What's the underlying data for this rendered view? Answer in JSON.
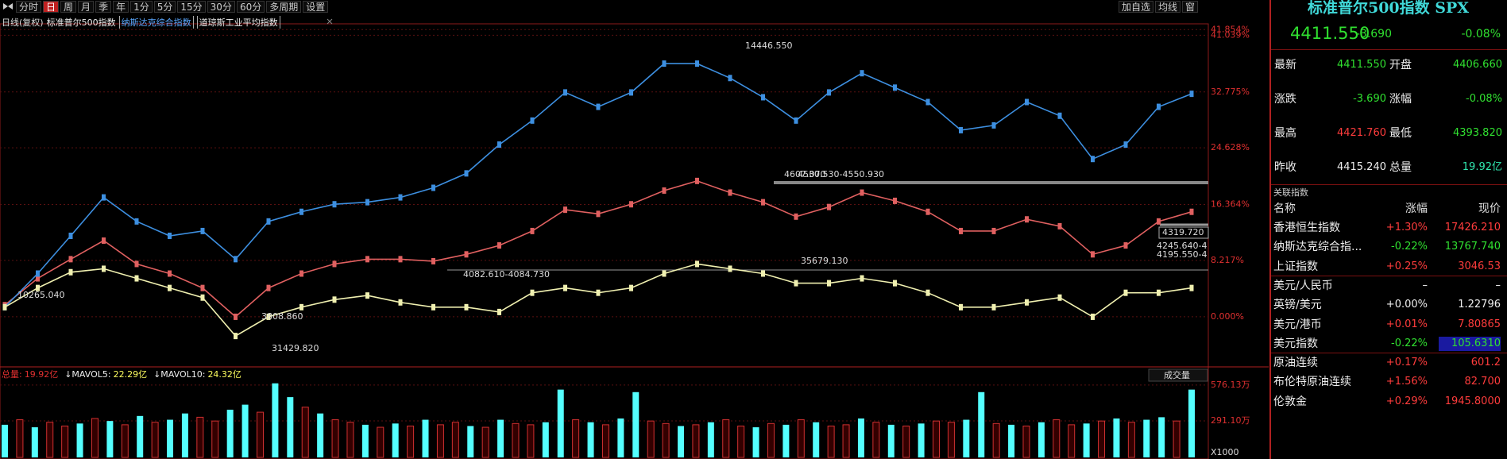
{
  "toolbar": {
    "left": [
      {
        "label": "分时"
      },
      {
        "label": "日",
        "selected": true
      },
      {
        "label": "周"
      },
      {
        "label": "月"
      },
      {
        "label": "季"
      },
      {
        "label": "年"
      },
      {
        "label": "1分"
      },
      {
        "label": "5分"
      },
      {
        "label": "15分"
      },
      {
        "label": "30分"
      },
      {
        "label": "60分"
      },
      {
        "label": "多周期"
      },
      {
        "label": "设置"
      }
    ],
    "right": [
      "加自选",
      "均线",
      "窗"
    ]
  },
  "period": "日线(复权)",
  "chart_data": [
    {
      "type": "line",
      "series": [
        {
          "name": "标准普尔500指数",
          "color": "#e06060",
          "values": [
            1.7,
            5.6,
            8.4,
            11.1,
            7.7,
            6.3,
            4.2,
            0.0,
            4.2,
            6.3,
            7.7,
            8.4,
            8.4,
            8.1,
            9.1,
            10.4,
            12.5,
            15.6,
            15.0,
            16.4,
            18.4,
            19.8,
            18.1,
            16.7,
            14.6,
            16.0,
            18.1,
            16.9,
            15.3,
            12.5,
            12.5,
            14.2,
            13.2,
            9.1,
            10.4,
            13.9,
            15.3
          ]
        },
        {
          "name": "纳斯达克综合指数",
          "color": "#3d8fe0",
          "values": [
            1.4,
            6.3,
            11.8,
            17.4,
            13.9,
            11.8,
            12.5,
            8.4,
            13.9,
            15.3,
            16.4,
            16.7,
            17.4,
            18.8,
            20.9,
            25.1,
            28.6,
            32.7,
            30.6,
            32.7,
            36.9,
            36.9,
            34.8,
            32.0,
            28.6,
            32.7,
            35.5,
            33.4,
            31.3,
            27.2,
            27.9,
            31.3,
            29.3,
            23.0,
            25.1,
            30.6,
            32.5
          ]
        },
        {
          "name": "道琼斯工业平均指数",
          "color": "#f0f0b0",
          "values": [
            1.4,
            4.2,
            6.5,
            7.0,
            5.6,
            4.2,
            2.8,
            -2.8,
            0.0,
            1.4,
            2.5,
            3.1,
            2.1,
            1.4,
            1.4,
            0.7,
            3.5,
            4.2,
            3.5,
            4.2,
            6.3,
            7.7,
            7.0,
            6.3,
            4.9,
            4.9,
            5.6,
            4.9,
            3.5,
            1.4,
            1.4,
            2.1,
            2.8,
            0.0,
            3.5,
            3.5,
            4.2
          ]
        }
      ],
      "ylim": [
        -7.3,
        42.7
      ],
      "yticks": [
        {
          "value": 41.854,
          "label": "41.854%"
        },
        {
          "value": 41.039,
          "label": "41.039%"
        },
        {
          "value": 32.775,
          "label": "32.775%"
        },
        {
          "value": 24.628,
          "label": "24.628%"
        },
        {
          "value": 16.364,
          "label": "16.364%"
        },
        {
          "value": 8.217,
          "label": "8.217%"
        },
        {
          "value": 0,
          "label": "0.000%"
        }
      ],
      "grid": true,
      "annotations": [
        "14446.550",
        "10265.040",
        "3808.860",
        "31429.820",
        "35679.130",
        "4082.610-4084.730",
        "4607.070",
        "4530.530-4550.930",
        "4319.720",
        "4245.640-4",
        "4195.550-4"
      ]
    },
    {
      "type": "bar",
      "title": "成交量",
      "unit": "X1000",
      "legend": [
        {
          "label": "总量:",
          "value": "19.92亿"
        },
        {
          "label": "↓MAVOL5:",
          "value": "22.29亿"
        },
        {
          "label": "↓MAVOL10:",
          "value": "24.32亿"
        }
      ],
      "values": [
        260,
        300,
        240,
        280,
        250,
        270,
        310,
        290,
        260,
        330,
        280,
        300,
        350,
        320,
        290,
        380,
        420,
        360,
        590,
        480,
        400,
        350,
        300,
        280,
        260,
        240,
        270,
        250,
        300,
        260,
        280,
        250,
        240,
        300,
        270,
        260,
        280,
        540,
        300,
        280,
        260,
        310,
        520,
        290,
        270,
        250,
        260,
        280,
        300,
        250,
        240,
        270,
        260,
        300,
        280,
        250,
        260,
        310,
        280,
        260,
        250,
        270,
        290,
        280,
        300,
        520,
        270,
        260,
        250,
        280,
        300,
        260,
        270,
        290,
        310,
        280,
        300,
        320,
        290,
        540
      ],
      "up": [
        true,
        false,
        true,
        false,
        false,
        true,
        false,
        true,
        false,
        true,
        false,
        true,
        true,
        false,
        false,
        true,
        true,
        false,
        true,
        true,
        false,
        true,
        false,
        false,
        true,
        false,
        true,
        false,
        true,
        false,
        false,
        true,
        false,
        true,
        false,
        false,
        true,
        true,
        false,
        true,
        false,
        true,
        true,
        false,
        false,
        true,
        false,
        true,
        false,
        false,
        true,
        false,
        true,
        false,
        true,
        false,
        false,
        true,
        false,
        true,
        false,
        true,
        false,
        false,
        true,
        true,
        false,
        true,
        false,
        true,
        false,
        false,
        true,
        false,
        true,
        false,
        true,
        true,
        false,
        true
      ],
      "up_color": "#54ffff",
      "down_color": "#d03030",
      "ylim": [
        0,
        721
      ],
      "yticks": [
        {
          "value": 576.13,
          "label": "576.13万"
        },
        {
          "value": 291.1,
          "label": "291.10万"
        }
      ]
    }
  ],
  "quote_panel": {
    "title": "标准普尔500指数 SPX",
    "price": "4411.550",
    "change": "-3.690",
    "change_pct": "-0.08%",
    "stats": [
      [
        "最新",
        "4411.550",
        "开盘",
        "4406.660"
      ],
      [
        "涨跌",
        "-3.690",
        "涨幅",
        "-0.08%"
      ],
      [
        "最高",
        "4421.760",
        "最低",
        "4393.820"
      ],
      [
        "昨收",
        "4415.240",
        "总量",
        "19.92亿"
      ]
    ],
    "related": {
      "title": "关联指数",
      "header": [
        "名称",
        "涨幅",
        "现价"
      ],
      "rows": [
        [
          "香港恒生指数",
          "+1.30%",
          "17426.210"
        ],
        [
          "纳斯达克综合指...",
          "-0.22%",
          "13767.740"
        ],
        [
          "上证指数",
          "+0.25%",
          "3046.53"
        ],
        [
          "美元/人民币",
          "–",
          "–"
        ],
        [
          "英镑/美元",
          "+0.00%",
          "1.22796"
        ],
        [
          "美元/港币",
          "+0.01%",
          "7.80865"
        ],
        [
          "美元指数",
          "-0.22%",
          "105.6310"
        ],
        [
          "原油连续",
          "+0.17%",
          "601.2"
        ],
        [
          "布伦特原油连续",
          "+1.56%",
          "82.700"
        ],
        [
          "伦敦金",
          "+0.29%",
          "1945.8000"
        ]
      ]
    }
  }
}
